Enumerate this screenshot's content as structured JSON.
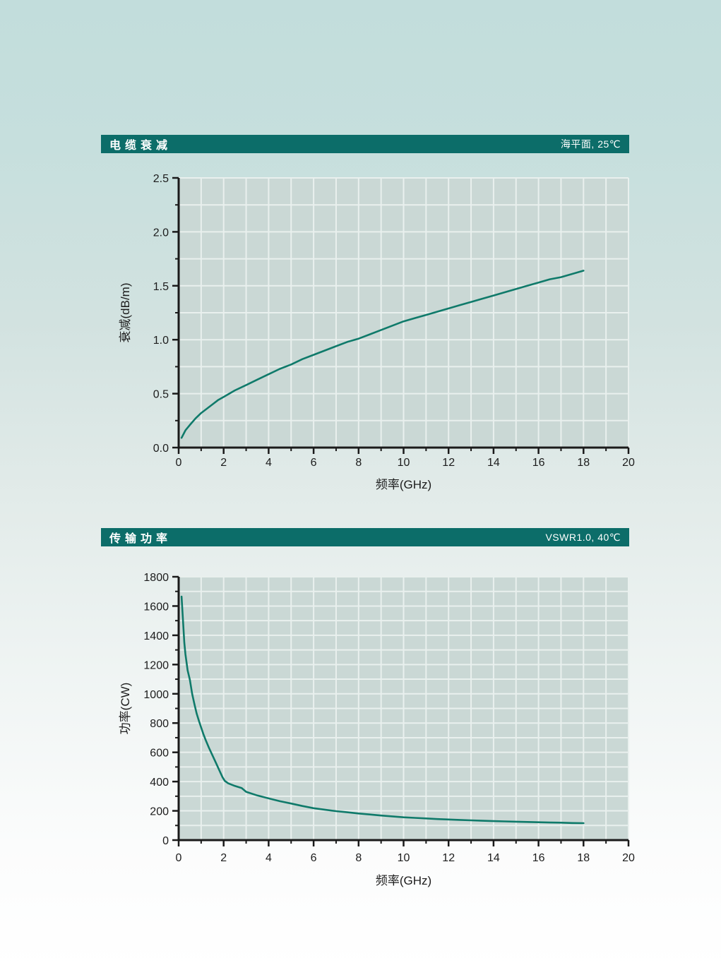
{
  "style": {
    "header_bg": "#0c6d69",
    "header_text": "#ffffff",
    "plot_bg": "#cad8d5",
    "grid_color": "#e9f0ee",
    "axis_color": "#1a1a1a",
    "tick_label_color": "#1c1c1c",
    "curve_color": "#0f7a6a",
    "page_bg_top": "#c2dddc",
    "page_bg_bottom": "#ffffff"
  },
  "chart_data": [
    {
      "type": "line",
      "title": "电缆衰减",
      "condition": "海平面, 25℃",
      "xlabel": "频率(GHz)",
      "ylabel": "衰减(dB/m)",
      "xlim": [
        0,
        20
      ],
      "ylim": [
        0,
        2.5
      ],
      "x_major_tick": 2,
      "x_minor_tick": 1,
      "y_major_tick": 0.5,
      "y_minor_tick": 0.25,
      "x_grid_step": 1,
      "y_grid_step": 0.25,
      "y_tick_decimals": 1,
      "grid": true,
      "legend": "none",
      "series": [
        {
          "name": "衰减",
          "points": [
            [
              0.13,
              0.09
            ],
            [
              0.3,
              0.16
            ],
            [
              0.5,
              0.21
            ],
            [
              0.75,
              0.27
            ],
            [
              1,
              0.32
            ],
            [
              1.25,
              0.36
            ],
            [
              1.5,
              0.4
            ],
            [
              1.75,
              0.44
            ],
            [
              2,
              0.47
            ],
            [
              2.5,
              0.53
            ],
            [
              3,
              0.58
            ],
            [
              3.5,
              0.63
            ],
            [
              4,
              0.68
            ],
            [
              4.5,
              0.73
            ],
            [
              5,
              0.77
            ],
            [
              5.5,
              0.82
            ],
            [
              6,
              0.86
            ],
            [
              6.5,
              0.9
            ],
            [
              7,
              0.94
            ],
            [
              7.5,
              0.98
            ],
            [
              8,
              1.01
            ],
            [
              8.5,
              1.05
            ],
            [
              9,
              1.09
            ],
            [
              9.5,
              1.13
            ],
            [
              10,
              1.17
            ],
            [
              10.5,
              1.2
            ],
            [
              11,
              1.23
            ],
            [
              11.5,
              1.26
            ],
            [
              12,
              1.29
            ],
            [
              12.5,
              1.32
            ],
            [
              13,
              1.35
            ],
            [
              13.5,
              1.38
            ],
            [
              14,
              1.41
            ],
            [
              14.5,
              1.44
            ],
            [
              15,
              1.47
            ],
            [
              15.5,
              1.5
            ],
            [
              16,
              1.53
            ],
            [
              16.5,
              1.56
            ],
            [
              17,
              1.58
            ],
            [
              17.5,
              1.61
            ],
            [
              18,
              1.64
            ]
          ]
        }
      ]
    },
    {
      "type": "line",
      "title": "传输功率",
      "condition": "VSWR1.0, 40℃",
      "xlabel": "频率(GHz)",
      "ylabel": "功率(CW)",
      "xlim": [
        0,
        20
      ],
      "ylim": [
        0,
        1800
      ],
      "x_major_tick": 2,
      "x_minor_tick": 1,
      "y_major_tick": 200,
      "y_minor_tick": 100,
      "x_grid_step": 1,
      "y_grid_step": 100,
      "y_tick_decimals": 0,
      "grid": true,
      "legend": "none",
      "series": [
        {
          "name": "功率",
          "points": [
            [
              0.13,
              1665
            ],
            [
              0.2,
              1480
            ],
            [
              0.25,
              1350
            ],
            [
              0.3,
              1270
            ],
            [
              0.4,
              1160
            ],
            [
              0.5,
              1095
            ],
            [
              0.6,
              1000
            ],
            [
              0.7,
              930
            ],
            [
              0.8,
              865
            ],
            [
              0.9,
              815
            ],
            [
              1,
              770
            ],
            [
              1.1,
              725
            ],
            [
              1.2,
              685
            ],
            [
              1.35,
              630
            ],
            [
              1.5,
              580
            ],
            [
              1.65,
              530
            ],
            [
              1.8,
              480
            ],
            [
              1.95,
              430
            ],
            [
              2.05,
              405
            ],
            [
              2.2,
              388
            ],
            [
              2.5,
              370
            ],
            [
              2.8,
              356
            ],
            [
              3,
              330
            ],
            [
              3.5,
              305
            ],
            [
              4,
              285
            ],
            [
              4.5,
              266
            ],
            [
              5,
              250
            ],
            [
              5.5,
              233
            ],
            [
              6,
              218
            ],
            [
              6.5,
              208
            ],
            [
              7,
              198
            ],
            [
              7.5,
              190
            ],
            [
              8,
              182
            ],
            [
              8.5,
              175
            ],
            [
              9,
              168
            ],
            [
              9.5,
              162
            ],
            [
              10,
              156
            ],
            [
              10.5,
              152
            ],
            [
              11,
              148
            ],
            [
              11.5,
              144
            ],
            [
              12,
              141
            ],
            [
              12.5,
              138
            ],
            [
              13,
              135
            ],
            [
              13.5,
              132
            ],
            [
              14,
              130
            ],
            [
              14.5,
              128
            ],
            [
              15,
              126
            ],
            [
              15.5,
              124
            ],
            [
              16,
              122
            ],
            [
              16.5,
              120
            ],
            [
              17,
              119
            ],
            [
              17.5,
              117
            ],
            [
              18,
              116
            ]
          ]
        }
      ]
    }
  ]
}
